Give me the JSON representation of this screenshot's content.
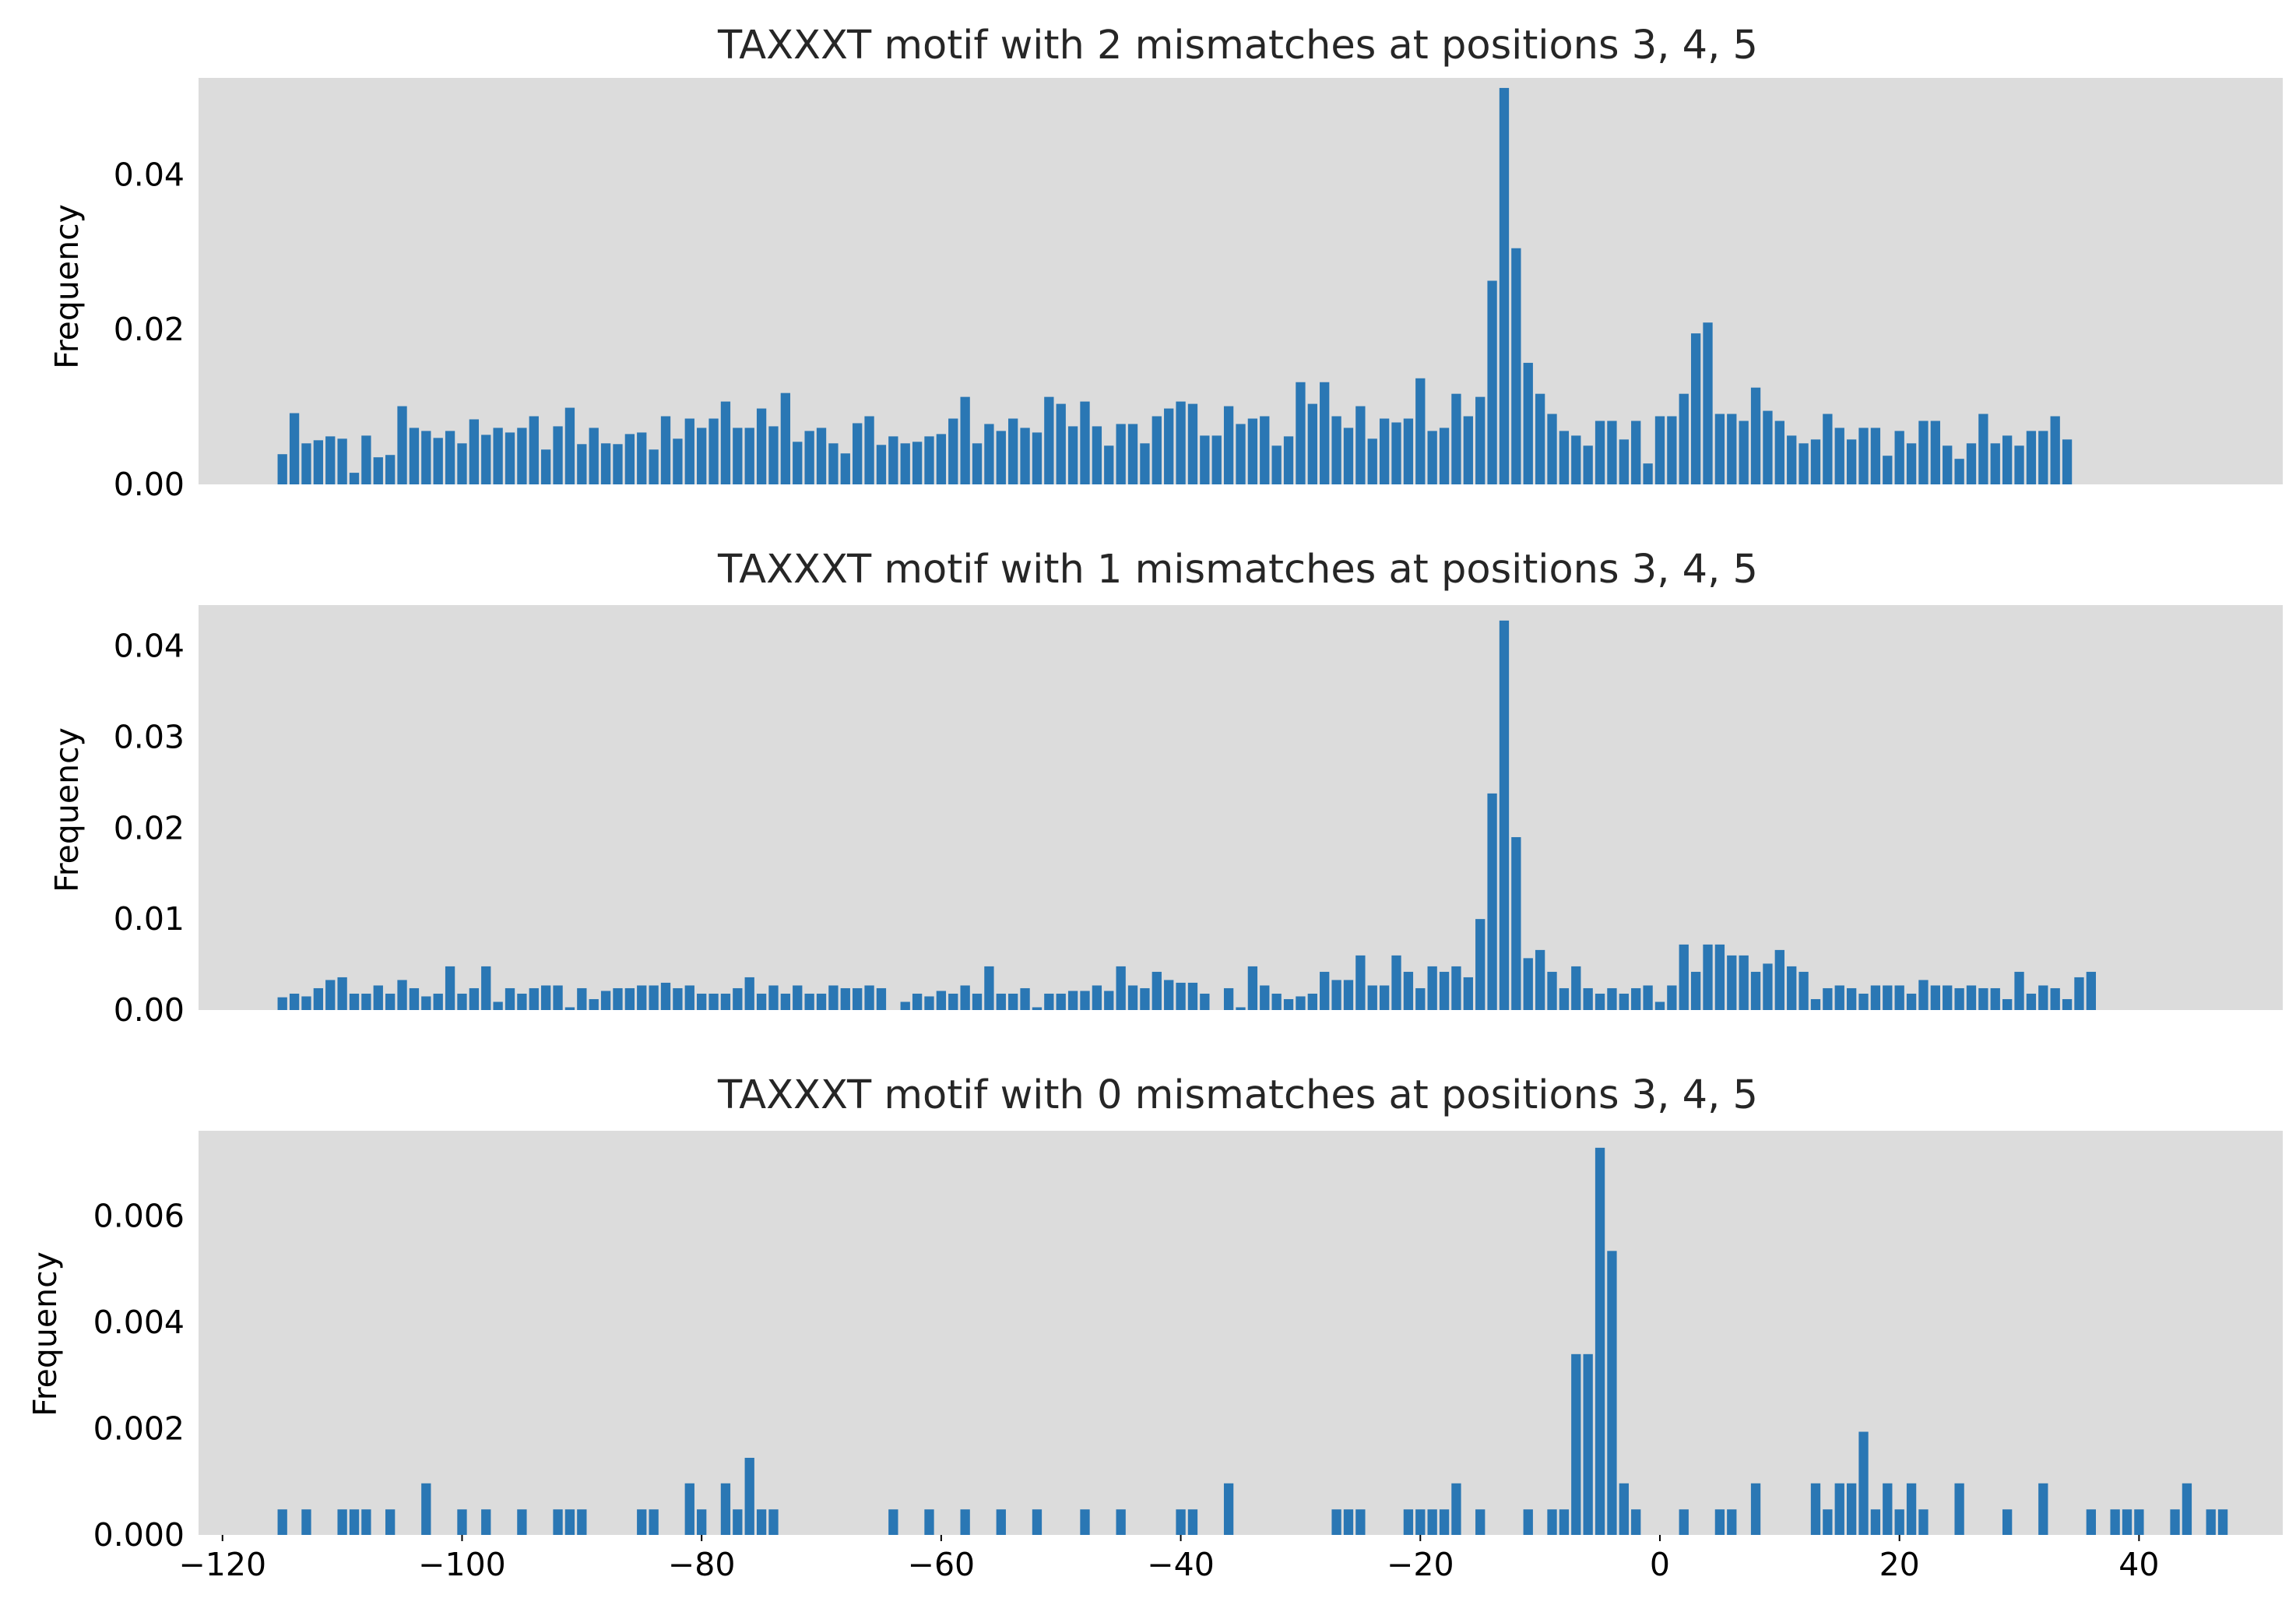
{
  "chart_data": [
    {
      "type": "bar",
      "title": "TAXXXT motif with 2 mismatches at positions 3, 4, 5",
      "ylabel": "Frequency",
      "xlim": [
        -122,
        52
      ],
      "ylim": [
        0,
        0.0525
      ],
      "yticks": [
        "0.00",
        "0.02",
        "0.04"
      ],
      "ytick_values": [
        0,
        0.02,
        0.04
      ],
      "xtick_labels_visible": false,
      "x_start": -115,
      "values": [
        0.0039,
        0.0092,
        0.0053,
        0.0057,
        0.0062,
        0.0059,
        0.0015,
        0.0063,
        0.0035,
        0.0038,
        0.0101,
        0.0073,
        0.0069,
        0.006,
        0.0069,
        0.0053,
        0.0084,
        0.0064,
        0.0073,
        0.0067,
        0.0073,
        0.0088,
        0.0045,
        0.0075,
        0.0099,
        0.0052,
        0.0073,
        0.0053,
        0.0052,
        0.0065,
        0.0067,
        0.0045,
        0.0088,
        0.0059,
        0.0085,
        0.0073,
        0.0085,
        0.0107,
        0.0073,
        0.0073,
        0.0098,
        0.0075,
        0.0118,
        0.0055,
        0.0069,
        0.0073,
        0.0053,
        0.004,
        0.0079,
        0.0088,
        0.0051,
        0.0062,
        0.0053,
        0.0055,
        0.0062,
        0.0065,
        0.0085,
        0.0113,
        0.0053,
        0.0078,
        0.0069,
        0.0085,
        0.0073,
        0.0067,
        0.0113,
        0.0104,
        0.0075,
        0.0107,
        0.0075,
        0.005,
        0.0078,
        0.0078,
        0.0053,
        0.0088,
        0.0098,
        0.0107,
        0.0104,
        0.0063,
        0.0063,
        0.0101,
        0.0078,
        0.0085,
        0.0088,
        0.005,
        0.0062,
        0.0132,
        0.0104,
        0.0132,
        0.0088,
        0.0073,
        0.0101,
        0.0059,
        0.0085,
        0.008,
        0.0085,
        0.0137,
        0.0069,
        0.0073,
        0.0117,
        0.0088,
        0.0113,
        0.0263,
        0.0512,
        0.0305,
        0.0157,
        0.0117,
        0.0091,
        0.0069,
        0.0063,
        0.005,
        0.0082,
        0.0082,
        0.0058,
        0.0082,
        0.0027,
        0.0088,
        0.0088,
        0.0117,
        0.0195,
        0.0209,
        0.0091,
        0.0091,
        0.0082,
        0.0125,
        0.0095,
        0.0082,
        0.0063,
        0.0053,
        0.0058,
        0.0091,
        0.0073,
        0.0058,
        0.0073,
        0.0073,
        0.0037,
        0.0069,
        0.0053,
        0.0082,
        0.0082,
        0.005,
        0.0033,
        0.0053,
        0.0091,
        0.0053,
        0.0063,
        0.005,
        0.0069,
        0.0069,
        0.0088,
        0.0058
      ]
    },
    {
      "type": "bar",
      "title": "TAXXXT motif with 1 mismatches at positions 3, 4, 5",
      "ylabel": "Frequency",
      "xlim": [
        -122,
        52
      ],
      "ylim": [
        0,
        0.0445
      ],
      "yticks": [
        "0.00",
        "0.01",
        "0.02",
        "0.03",
        "0.04"
      ],
      "ytick_values": [
        0,
        0.01,
        0.02,
        0.03,
        0.04
      ],
      "xtick_labels_visible": false,
      "x_start": -115,
      "values": [
        0.0014,
        0.0018,
        0.0015,
        0.0024,
        0.0033,
        0.0036,
        0.0018,
        0.0018,
        0.0027,
        0.0018,
        0.0033,
        0.0024,
        0.0015,
        0.0018,
        0.0048,
        0.0018,
        0.0024,
        0.0048,
        0.0009,
        0.0024,
        0.0018,
        0.0024,
        0.0027,
        0.0027,
        0.0003,
        0.0024,
        0.0012,
        0.0021,
        0.0024,
        0.0024,
        0.0027,
        0.0027,
        0.003,
        0.0024,
        0.0027,
        0.0018,
        0.0018,
        0.0018,
        0.0024,
        0.0036,
        0.0018,
        0.0027,
        0.0018,
        0.0027,
        0.0018,
        0.0018,
        0.0027,
        0.0024,
        0.0024,
        0.0027,
        0.0024,
        0.0,
        0.0009,
        0.0018,
        0.0015,
        0.0021,
        0.0018,
        0.0027,
        0.0018,
        0.0048,
        0.0018,
        0.0018,
        0.0024,
        0.0003,
        0.0018,
        0.0018,
        0.0021,
        0.0021,
        0.0027,
        0.0021,
        0.0048,
        0.0027,
        0.0024,
        0.0042,
        0.0033,
        0.003,
        0.003,
        0.0018,
        0.0,
        0.0024,
        0.0003,
        0.0048,
        0.0027,
        0.0018,
        0.0012,
        0.0015,
        0.0018,
        0.0042,
        0.0033,
        0.0033,
        0.006,
        0.0027,
        0.0027,
        0.006,
        0.0042,
        0.0024,
        0.0048,
        0.0042,
        0.0048,
        0.0036,
        0.01,
        0.0238,
        0.0428,
        0.019,
        0.0057,
        0.0066,
        0.0042,
        0.0024,
        0.0048,
        0.0024,
        0.0018,
        0.0024,
        0.0018,
        0.0024,
        0.0027,
        0.0009,
        0.0027,
        0.0072,
        0.0042,
        0.0072,
        0.0072,
        0.006,
        0.006,
        0.0042,
        0.0051,
        0.0066,
        0.0048,
        0.0042,
        0.0012,
        0.0024,
        0.0027,
        0.0024,
        0.0018,
        0.0027,
        0.0027,
        0.0027,
        0.0018,
        0.0033,
        0.0027,
        0.0027,
        0.0024,
        0.0027,
        0.0024,
        0.0024,
        0.0012,
        0.0042,
        0.0018,
        0.0027,
        0.0024,
        0.0012,
        0.0036,
        0.0042
      ]
    },
    {
      "type": "bar",
      "title": "TAXXXT motif with 0 mismatches at positions 3, 4, 5",
      "ylabel": "Frequency",
      "xlim": [
        -122,
        52
      ],
      "ylim": [
        0,
        0.0076
      ],
      "yticks": [
        "0.000",
        "0.002",
        "0.004",
        "0.006"
      ],
      "ytick_values": [
        0,
        0.002,
        0.004,
        0.006
      ],
      "xticks": [
        "−120",
        "−100",
        "−80",
        "−60",
        "−40",
        "−20",
        "0",
        "20",
        "40"
      ],
      "xtick_values": [
        -120,
        -100,
        -80,
        -60,
        -40,
        -20,
        0,
        20,
        40
      ],
      "x_start": -115,
      "values": [
        0.00048,
        0,
        0.00048,
        0,
        0,
        0.00048,
        0.00048,
        0.00048,
        0,
        0.00048,
        0,
        0,
        0.00097,
        0,
        0,
        0.00048,
        0,
        0.00048,
        0,
        0,
        0.00048,
        0,
        0,
        0.00048,
        0.00048,
        0.00048,
        0,
        0,
        0,
        0,
        0.00048,
        0.00048,
        0,
        0,
        0.00097,
        0.00048,
        0,
        0.00097,
        0.00048,
        0.00145,
        0.00048,
        0.00048,
        0,
        0,
        0,
        0,
        0,
        0,
        0,
        0,
        0,
        0.00048,
        0,
        0,
        0.00048,
        0,
        0,
        0.00048,
        0,
        0,
        0.00048,
        0,
        0,
        0.00048,
        0,
        0,
        0,
        0.00048,
        0,
        0,
        0.00048,
        0,
        0,
        0,
        0,
        0.00048,
        0.00048,
        0,
        0,
        0.00097,
        0,
        0,
        0,
        0,
        0,
        0,
        0,
        0,
        0.00048,
        0.00048,
        0.00048,
        0,
        0,
        0,
        0.00048,
        0.00048,
        0.00048,
        0.00048,
        0.00097,
        0,
        0.00048,
        0,
        0,
        0,
        0.00048,
        0,
        0.00048,
        0.00048,
        0.0034,
        0.0034,
        0.00728,
        0.00534,
        0.00097,
        0.00048,
        0,
        0,
        0,
        0.00048,
        0,
        0,
        0.00048,
        0.00048,
        0,
        0.00097,
        0,
        0,
        0,
        0,
        0.00097,
        0.00048,
        0.00097,
        0.00097,
        0.00194,
        0.00048,
        0.00097,
        0.00048,
        0.00097,
        0.00048,
        0,
        0,
        0.00097,
        0,
        0,
        0,
        0.00048,
        0,
        0,
        0.00097,
        0,
        0,
        0,
        0.00048,
        0,
        0.00048,
        0.00048,
        0.00048,
        0,
        0,
        0.00048,
        0.00097,
        0,
        0.00048,
        0.00048
      ]
    }
  ]
}
